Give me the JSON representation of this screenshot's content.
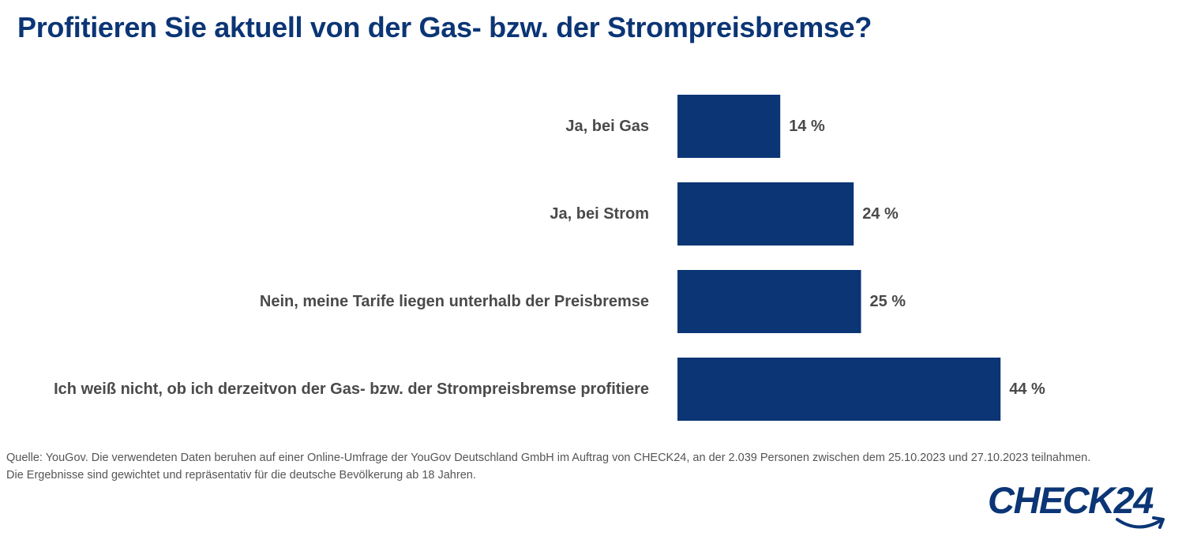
{
  "title": "Profitieren Sie aktuell von der Gas- bzw. der Strompreisbremse?",
  "chart_data": {
    "type": "bar",
    "orientation": "horizontal",
    "categories": [
      "Ja, bei Gas",
      "Ja, bei Strom",
      "Nein, meine Tarife liegen unterhalb der Preisbremse",
      "Ich weiß nicht, ob ich derzeitvon der Gas- bzw. der Strompreisbremse profitiere"
    ],
    "values": [
      14,
      24,
      25,
      44
    ],
    "value_labels": [
      "14 %",
      "24 %",
      "25 %",
      "44 %"
    ],
    "unit": "%",
    "xlim": [
      0,
      50
    ],
    "grid": false,
    "legend": "none",
    "bar_color": "#0b3575"
  },
  "source": {
    "line1": "Quelle: YouGov. Die verwendeten Daten beruhen auf einer Online-Umfrage der YouGov Deutschland GmbH im Auftrag von CHECK24, an der 2.039 Personen zwischen dem 25.10.2023 und 27.10.2023 teilnahmen.",
    "line2": "Die Ergebnisse sind gewichtet und repräsentativ für die deutsche Bevölkerung ab 18 Jahren."
  },
  "logo": {
    "text": "CHECK24",
    "color": "#0b3575"
  }
}
